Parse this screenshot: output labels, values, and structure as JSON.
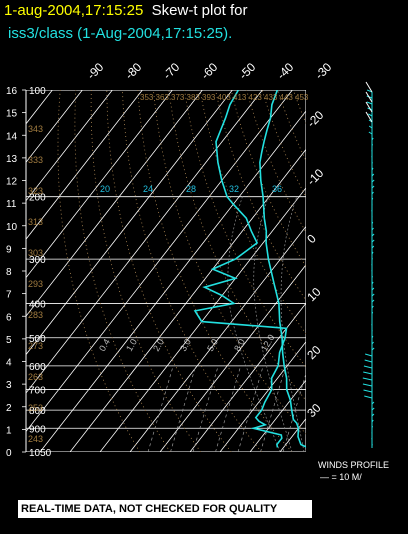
{
  "header": {
    "timestamp": "1-aug-2004,17:15:25",
    "title_suffix": "Skew-t plot for",
    "subtitle": "iss3/class (1-Aug-2004,17:15:25)."
  },
  "footer": {
    "notice": "REAL-TIME DATA, NOT CHECKED FOR QUALITY"
  },
  "winds": {
    "label": "WINDS PROFILE",
    "scale": "— = 10 M/"
  },
  "colors": {
    "temperature": "#22e0e0",
    "dewpoint": "#22e0e0",
    "header_yellow": "#ffff00",
    "subtitle_cyan": "#22e0e0",
    "mixing_ratio": "#c89a50"
  },
  "chart_data": {
    "type": "line",
    "title": "Skew-t plot for iss3/class (1-Aug-2004,17:15:25).",
    "pressure_levels_hpa": [
      "100",
      "200",
      "300",
      "400",
      "500",
      "600",
      "700",
      "800",
      "900",
      "1050"
    ],
    "height_km_ticks": [
      "0",
      "1",
      "2",
      "3",
      "4",
      "5",
      "6",
      "7",
      "8",
      "9",
      "10",
      "11",
      "12",
      "13",
      "14",
      "15",
      "16"
    ],
    "temperature_ticks_c_top": [
      "-90",
      "-80",
      "-70",
      "-60",
      "-50",
      "-40",
      "-30"
    ],
    "temperature_ticks_c_right": [
      "-20",
      "-10",
      "0",
      "10",
      "20",
      "30"
    ],
    "mixing_ratio_labels": [
      "0.4",
      "1.0",
      "2.0",
      "3.0",
      "5.0",
      "8.0",
      "12.0"
    ],
    "dry_adiabat_labels": [
      "243",
      "253",
      "263",
      "273",
      "283",
      "293",
      "303",
      "313",
      "323",
      "333",
      "343"
    ],
    "dry_adiabat_top_labels": [
      "353",
      "363",
      "373",
      "383",
      "393",
      "403",
      "413",
      "423",
      "433",
      "443",
      "453"
    ],
    "moist_adiabat_labels": [
      "20",
      "24",
      "28",
      "32",
      "36"
    ],
    "series": [
      {
        "name": "Temperature",
        "points": [
          [
            1020,
            28
          ],
          [
            1000,
            25
          ],
          [
            950,
            22
          ],
          [
            900,
            20
          ],
          [
            870,
            18
          ],
          [
            850,
            16
          ],
          [
            800,
            13
          ],
          [
            750,
            10
          ],
          [
            700,
            6
          ],
          [
            650,
            3
          ],
          [
            600,
            -1
          ],
          [
            550,
            -5
          ],
          [
            500,
            -9
          ],
          [
            450,
            -14
          ],
          [
            400,
            -19
          ],
          [
            350,
            -26
          ],
          [
            300,
            -34
          ],
          [
            270,
            -39
          ],
          [
            250,
            -42
          ],
          [
            230,
            -46
          ],
          [
            200,
            -52
          ],
          [
            180,
            -57
          ],
          [
            160,
            -62
          ],
          [
            150,
            -64
          ],
          [
            140,
            -66
          ],
          [
            130,
            -68
          ],
          [
            120,
            -70
          ],
          [
            110,
            -73
          ],
          [
            100,
            -75
          ]
        ]
      },
      {
        "name": "Dewpoint",
        "points": [
          [
            1020,
            18
          ],
          [
            1000,
            17
          ],
          [
            960,
            17
          ],
          [
            940,
            16
          ],
          [
            900,
            5
          ],
          [
            880,
            8
          ],
          [
            860,
            5
          ],
          [
            840,
            3
          ],
          [
            800,
            3
          ],
          [
            760,
            2
          ],
          [
            700,
            1
          ],
          [
            650,
            -2
          ],
          [
            600,
            -3
          ],
          [
            550,
            -6
          ],
          [
            500,
            -8
          ],
          [
            470,
            -10
          ],
          [
            450,
            -40
          ],
          [
            420,
            -45
          ],
          [
            400,
            -34
          ],
          [
            380,
            -40
          ],
          [
            360,
            -48
          ],
          [
            340,
            -40
          ],
          [
            320,
            -50
          ],
          [
            300,
            -45
          ],
          [
            270,
            -42
          ],
          [
            250,
            -47
          ],
          [
            230,
            -52
          ],
          [
            210,
            -60
          ],
          [
            200,
            -64
          ],
          [
            180,
            -70
          ],
          [
            160,
            -76
          ],
          [
            140,
            -82
          ],
          [
            120,
            -85
          ],
          [
            110,
            -87
          ],
          [
            100,
            -88
          ]
        ]
      }
    ],
    "ylim_hpa": [
      1050,
      100
    ],
    "xlim_c": [
      -40,
      40
    ],
    "grid": true
  }
}
